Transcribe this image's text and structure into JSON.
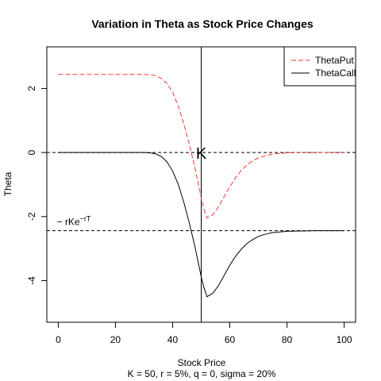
{
  "chart_data": {
    "type": "line",
    "title": "Variation in Theta as Stock Price Changes",
    "xlabel": "Stock Price",
    "subtitle": "K = 50, r = 5%, q = 0, sigma = 20%",
    "ylabel": "Theta",
    "xlim": [
      -4,
      104
    ],
    "ylim": [
      -5.3,
      3.3
    ],
    "x_ticks": [
      0,
      20,
      40,
      60,
      80,
      100
    ],
    "y_ticks": [
      2,
      0,
      -2,
      -4
    ],
    "vline": {
      "x": 50,
      "label": "K"
    },
    "hlines": [
      {
        "y": 0,
        "style": "dashed"
      },
      {
        "y": -2.44,
        "style": "dashed",
        "label_prefix": "− rKe",
        "label_sup": "−rT"
      }
    ],
    "legend": {
      "position": "top-right"
    },
    "series": [
      {
        "name": "ThetaPut",
        "color": "#ff3333",
        "style": "dashed",
        "x": [
          0,
          5,
          10,
          15,
          20,
          25,
          30,
          32,
          34,
          36,
          38,
          40,
          42,
          44,
          46,
          48,
          50,
          51,
          52,
          54,
          56,
          58,
          60,
          62,
          64,
          66,
          68,
          70,
          72,
          75,
          80,
          85,
          90,
          95,
          100
        ],
        "values": [
          2.44,
          2.44,
          2.44,
          2.44,
          2.44,
          2.44,
          2.44,
          2.43,
          2.4,
          2.32,
          2.16,
          1.88,
          1.45,
          0.87,
          0.2,
          -0.55,
          -1.42,
          -1.78,
          -2.04,
          -1.95,
          -1.7,
          -1.38,
          -1.07,
          -0.79,
          -0.56,
          -0.39,
          -0.26,
          -0.17,
          -0.11,
          -0.05,
          -0.01,
          0,
          0,
          0,
          0
        ]
      },
      {
        "name": "ThetaCall",
        "color": "#000000",
        "style": "solid",
        "x": [
          0,
          5,
          10,
          15,
          20,
          25,
          30,
          32,
          34,
          36,
          38,
          40,
          42,
          44,
          46,
          48,
          50,
          51,
          52,
          54,
          56,
          58,
          60,
          62,
          64,
          66,
          68,
          70,
          72,
          75,
          80,
          85,
          90,
          95,
          100
        ],
        "values": [
          0,
          0,
          0,
          0,
          0,
          0,
          0,
          -0.01,
          -0.04,
          -0.12,
          -0.29,
          -0.58,
          -1.0,
          -1.58,
          -2.26,
          -3.02,
          -3.88,
          -4.23,
          -4.5,
          -4.4,
          -4.16,
          -3.84,
          -3.52,
          -3.24,
          -3.02,
          -2.84,
          -2.72,
          -2.62,
          -2.56,
          -2.5,
          -2.46,
          -2.45,
          -2.44,
          -2.44,
          -2.44
        ]
      }
    ]
  }
}
